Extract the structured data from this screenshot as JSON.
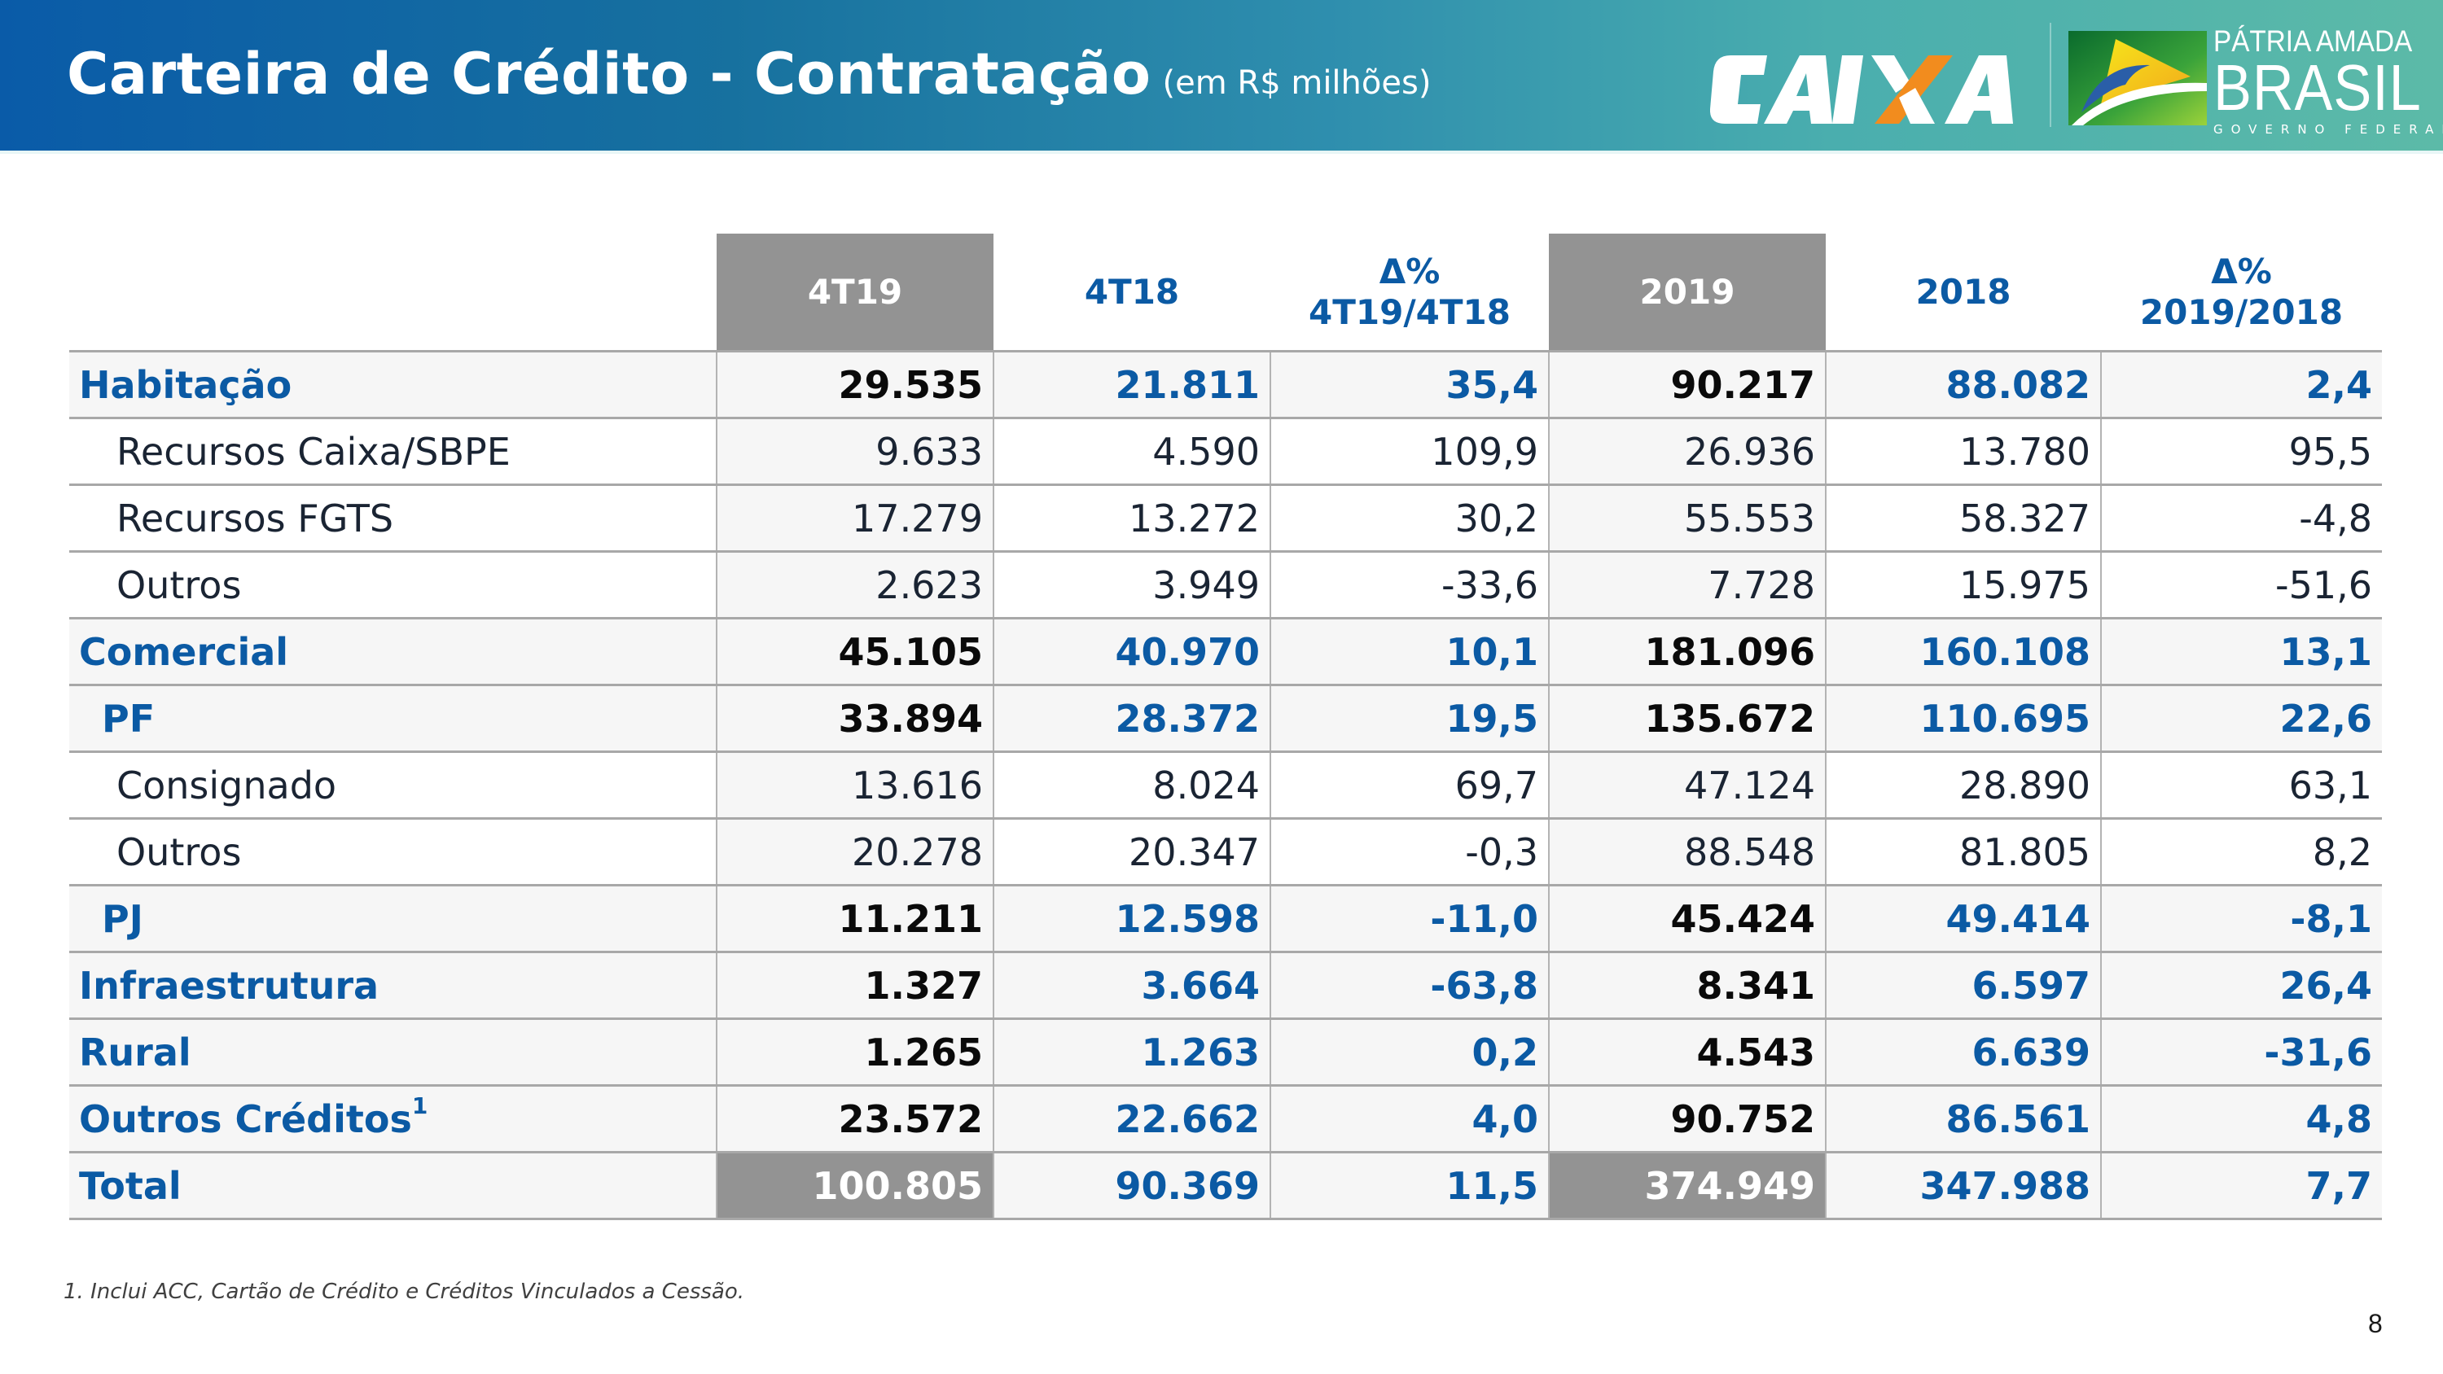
{
  "header": {
    "title": "Carteira de Crédito - Contratação",
    "subtitle": "(em R$ milhões)",
    "logo_caixa": "CAIXA",
    "logo_gov_line1": "PÁTRIA AMADA",
    "logo_gov_line2": "BRASIL",
    "logo_gov_line3": "GOVERNO FEDERAL",
    "colors": {
      "gradient_start": "#0a5ba8",
      "gradient_end": "#5cbaa8",
      "caixa_orange": "#f28c1e"
    }
  },
  "table": {
    "columns": [
      {
        "label_line1": "",
        "label_line2": "",
        "highlight": false
      },
      {
        "label_line1": "4T19",
        "label_line2": "",
        "highlight": true
      },
      {
        "label_line1": "4T18",
        "label_line2": "",
        "highlight": false
      },
      {
        "label_line1": "Δ%",
        "label_line2": "4T19/4T18",
        "highlight": false
      },
      {
        "label_line1": "2019",
        "label_line2": "",
        "highlight": true
      },
      {
        "label_line1": "2018",
        "label_line2": "",
        "highlight": false
      },
      {
        "label_line1": "Δ%",
        "label_line2": "2019/2018",
        "highlight": false
      }
    ],
    "rows": [
      {
        "label": "Habitação",
        "footnote": "",
        "level": "main",
        "values": [
          "29.535",
          "21.811",
          "35,4",
          "90.217",
          "88.082",
          "2,4"
        ]
      },
      {
        "label": "Recursos Caixa/SBPE",
        "footnote": "",
        "level": "sub",
        "values": [
          "9.633",
          "4.590",
          "109,9",
          "26.936",
          "13.780",
          "95,5"
        ]
      },
      {
        "label": "Recursos FGTS",
        "footnote": "",
        "level": "sub",
        "values": [
          "17.279",
          "13.272",
          "30,2",
          "55.553",
          "58.327",
          "-4,8"
        ]
      },
      {
        "label": "Outros",
        "footnote": "",
        "level": "sub",
        "values": [
          "2.623",
          "3.949",
          "-33,6",
          "7.728",
          "15.975",
          "-51,6"
        ]
      },
      {
        "label": "Comercial",
        "footnote": "",
        "level": "main",
        "values": [
          "45.105",
          "40.970",
          "10,1",
          "181.096",
          "160.108",
          "13,1"
        ]
      },
      {
        "label": "PF",
        "footnote": "",
        "level": "mid",
        "values": [
          "33.894",
          "28.372",
          "19,5",
          "135.672",
          "110.695",
          "22,6"
        ]
      },
      {
        "label": "Consignado",
        "footnote": "",
        "level": "sub",
        "values": [
          "13.616",
          "8.024",
          "69,7",
          "47.124",
          "28.890",
          "63,1"
        ]
      },
      {
        "label": "Outros",
        "footnote": "",
        "level": "sub",
        "values": [
          "20.278",
          "20.347",
          "-0,3",
          "88.548",
          "81.805",
          "8,2"
        ]
      },
      {
        "label": "PJ",
        "footnote": "",
        "level": "mid",
        "values": [
          "11.211",
          "12.598",
          "-11,0",
          "45.424",
          "49.414",
          "-8,1"
        ]
      },
      {
        "label": "Infraestrutura",
        "footnote": "",
        "level": "main",
        "values": [
          "1.327",
          "3.664",
          "-63,8",
          "8.341",
          "6.597",
          "26,4"
        ]
      },
      {
        "label": "Rural",
        "footnote": "",
        "level": "main",
        "values": [
          "1.265",
          "1.263",
          "0,2",
          "4.543",
          "6.639",
          "-31,6"
        ]
      },
      {
        "label": "Outros Créditos",
        "footnote": "1",
        "level": "main",
        "values": [
          "23.572",
          "22.662",
          "4,0",
          "90.752",
          "86.561",
          "4,8"
        ]
      },
      {
        "label": "Total",
        "footnote": "",
        "level": "total",
        "values": [
          "100.805",
          "90.369",
          "11,5",
          "374.949",
          "347.988",
          "7,7"
        ]
      }
    ],
    "colors": {
      "label_blue": "#0b5aa4",
      "highlight_gray": "#939393",
      "row_shade": "#f6f6f6"
    }
  },
  "footnote": "1. Inclui ACC, Cartão de Crédito e Créditos Vinculados a Cessão.",
  "page_number": "8"
}
